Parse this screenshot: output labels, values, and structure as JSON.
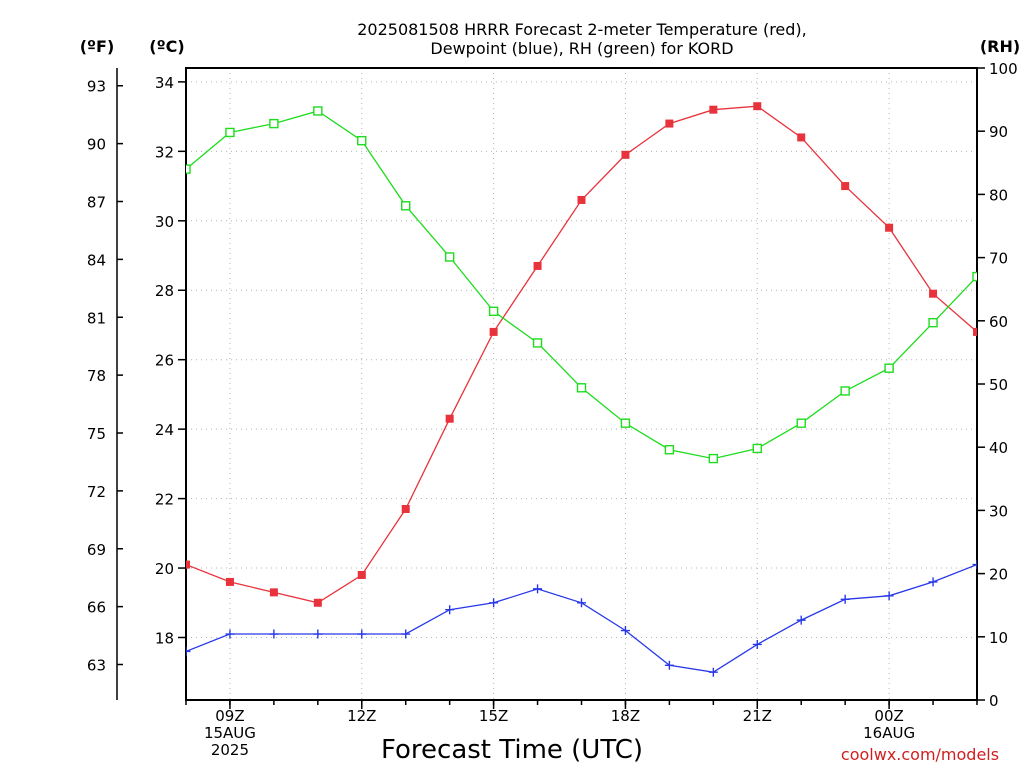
{
  "chart_data": {
    "type": "line",
    "title": [
      "2025081508 HRRR Forecast 2-meter Temperature (red),",
      "Dewpoint (blue), RH (green) for KORD"
    ],
    "xlabel": "Forecast Time (UTC)",
    "credit": "coolwx.com/models",
    "x_hours": [
      8,
      9,
      10,
      11,
      12,
      13,
      14,
      15,
      16,
      17,
      18,
      19,
      20,
      21,
      22,
      23,
      24,
      25,
      26
    ],
    "x_range": [
      8,
      26
    ],
    "x_ticks": [
      {
        "hour": 9,
        "lines": [
          "09Z",
          "15AUG",
          "2025"
        ]
      },
      {
        "hour": 12,
        "lines": [
          "12Z"
        ]
      },
      {
        "hour": 15,
        "lines": [
          "15Z"
        ]
      },
      {
        "hour": 18,
        "lines": [
          "18Z"
        ]
      },
      {
        "hour": 21,
        "lines": [
          "21Z"
        ]
      },
      {
        "hour": 24,
        "lines": [
          "00Z",
          "16AUG"
        ]
      }
    ],
    "axes": {
      "celsius": {
        "unit": "(ºC)",
        "range": [
          16.2,
          34.4
        ],
        "ticks": [
          18,
          20,
          22,
          24,
          26,
          28,
          30,
          32,
          34
        ]
      },
      "fahrenheit": {
        "unit": "(ºF)",
        "ticks": [
          63,
          66,
          69,
          72,
          75,
          78,
          81,
          84,
          87,
          90,
          93
        ]
      },
      "rh": {
        "unit": "(RH)",
        "range": [
          0,
          100
        ],
        "ticks": [
          0,
          10,
          20,
          30,
          40,
          50,
          60,
          70,
          80,
          90,
          100
        ]
      }
    },
    "grid": true,
    "series": [
      {
        "name": "Temperature",
        "axis": "celsius",
        "color": "#e8323c",
        "marker": "filled-square",
        "values": [
          20.1,
          19.6,
          19.3,
          19.0,
          19.8,
          21.7,
          24.3,
          26.8,
          28.7,
          30.6,
          31.9,
          32.8,
          33.2,
          33.3,
          32.4,
          31.0,
          29.8,
          27.9,
          26.8
        ]
      },
      {
        "name": "Dewpoint",
        "axis": "celsius",
        "color": "#2838e8",
        "marker": "plus",
        "values": [
          17.6,
          18.1,
          18.1,
          18.1,
          18.1,
          18.1,
          18.8,
          19.0,
          19.4,
          19.0,
          18.2,
          17.2,
          17.0,
          17.8,
          18.5,
          19.1,
          19.2,
          19.6,
          20.1
        ]
      },
      {
        "name": "RH",
        "axis": "rh",
        "color": "#1edc1e",
        "marker": "open-square",
        "values": [
          84.0,
          89.8,
          91.2,
          93.2,
          88.5,
          78.2,
          70.1,
          61.5,
          56.5,
          49.4,
          43.8,
          39.6,
          38.2,
          39.8,
          43.8,
          48.9,
          52.5,
          59.7,
          67.0
        ]
      }
    ]
  }
}
